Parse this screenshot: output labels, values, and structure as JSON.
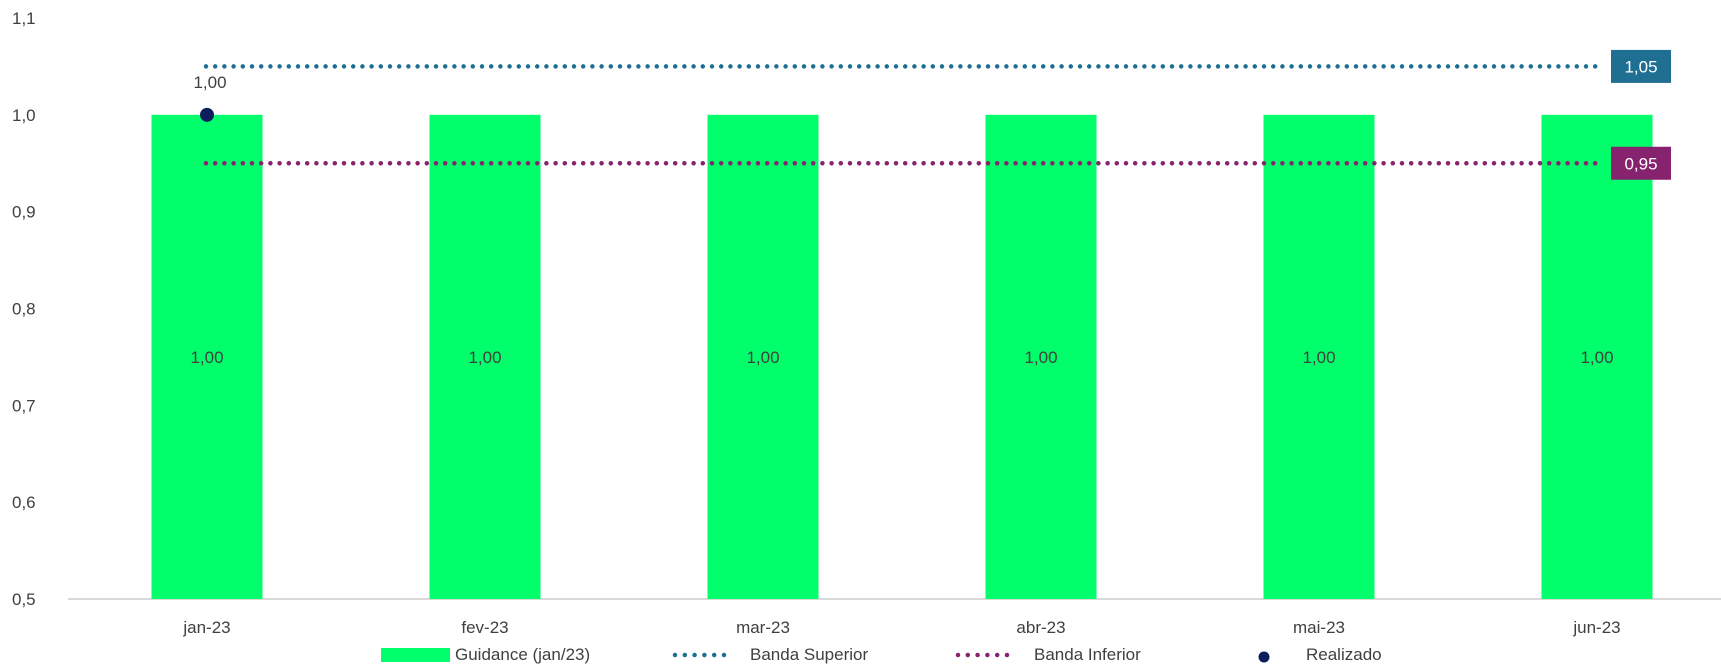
{
  "chart_data": {
    "type": "bar",
    "categories": [
      "jan-23",
      "fev-23",
      "mar-23",
      "abr-23",
      "mai-23",
      "jun-23"
    ],
    "ylim": [
      0.5,
      1.1
    ],
    "yticks": [
      "0,5",
      "0,6",
      "0,7",
      "0,8",
      "0,9",
      "1,0",
      "1,1"
    ],
    "ytick_values": [
      0.5,
      0.6,
      0.7,
      0.8,
      0.9,
      1.0,
      1.1
    ],
    "grid": false,
    "legend_position": "bottom",
    "series": [
      {
        "name": "Guidance (jan/23)",
        "kind": "bar",
        "color": "#00ff6a",
        "values": [
          1.0,
          1.0,
          1.0,
          1.0,
          1.0,
          1.0
        ],
        "labels": [
          "1,00",
          "1,00",
          "1,00",
          "1,00",
          "1,00",
          "1,00"
        ]
      },
      {
        "name": "Banda Superior",
        "kind": "dotted-line",
        "color": "#1f6f93",
        "values": [
          1.05,
          1.05,
          1.05,
          1.05,
          1.05,
          1.05
        ],
        "end_label": "1,05"
      },
      {
        "name": "Banda Inferior",
        "kind": "dotted-line",
        "color": "#87226f",
        "values": [
          0.95,
          0.95,
          0.95,
          0.95,
          0.95,
          0.95
        ],
        "end_label": "0,95"
      },
      {
        "name": "Realizado",
        "kind": "point",
        "color": "#0a1f5c",
        "values": [
          1.0,
          null,
          null,
          null,
          null,
          null
        ],
        "labels": [
          "1,00",
          null,
          null,
          null,
          null,
          null
        ]
      }
    ]
  }
}
